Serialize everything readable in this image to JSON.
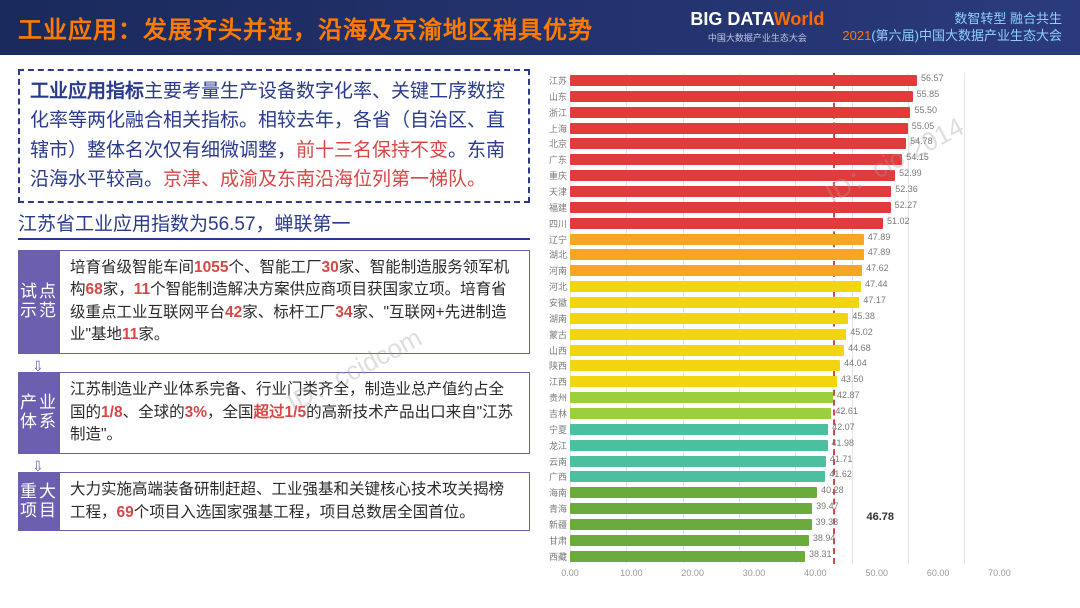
{
  "header": {
    "title": "工业应用：发展齐头并进，沿海及京渝地区稍具优势",
    "logo_big_pre": "BIG DATA",
    "logo_big_post": "World",
    "logo_sub": "中国大数据产业生态大会",
    "conf_line1": "数智转型  融合共生",
    "conf_line2_year": "2021",
    "conf_line2_rest": "(第六届)中国大数据产业生态大会"
  },
  "intro": {
    "bold": "工业应用指标",
    "t1": "主要考量生产设备数字化率、关键工序数控化率等两化融合相关指标。相较去年，各省（自治区、直辖市）整体名次仅有细微调整，",
    "red1": "前十三名保持不变",
    "t2": "。东南沿海水平较高。",
    "red2": "京津、成渝及东南沿海位列第一梯队。"
  },
  "subhead": "江苏省工业应用指数为56.57，蝉联第一",
  "sections": [
    {
      "tag": "试点示范",
      "html_parts": [
        "培育省级智能车间",
        "1055",
        "个、智能工厂",
        "30",
        "家、智能制造服务领军机构",
        "68",
        "家，",
        "11",
        "个智能制造解决方案供应商项目获国家立项。培育省级重点工业互联网平台",
        "42",
        "家、标杆工厂",
        "34",
        "家、\"互联网+先进制造业\"基地",
        "11",
        "家。"
      ]
    },
    {
      "tag": "产业体系",
      "html_parts": [
        "江苏制造业产业体系完备、行业门类齐全，制造业总产值约占全国的",
        "1/8",
        "、全球的",
        "3%",
        "，全国",
        "超过1/5",
        "的高新技术产品出口来自\"江苏制造\"。"
      ]
    },
    {
      "tag": "重大项目",
      "html_parts": [
        "大力实施高端装备研制赶超、工业强基和关键核心技术攻关揭榜工程，",
        "69",
        "个项目入选国家强基工程，项目总数居全国首位。"
      ]
    }
  ],
  "chart": {
    "type": "bar-horizontal",
    "x_max": 70,
    "x_ticks": [
      0,
      10,
      20,
      30,
      40,
      50,
      60,
      70
    ],
    "x_tick_labels": [
      "0.00",
      "10.00",
      "20.00",
      "30.00",
      "40.00",
      "50.00",
      "60.00",
      "70.00"
    ],
    "avg": 46.78,
    "avg_label": "46.78",
    "color_bands": {
      "red": "#e23b3b",
      "orange": "#f5a623",
      "yellow": "#f2d40f",
      "lime": "#9ccf3c",
      "teal": "#4bbfa0",
      "green": "#6aab3c"
    },
    "grid_color": "#e5e5e5",
    "text_color": "#7a7a7a",
    "items": [
      {
        "label": "江苏",
        "value": 56.57,
        "color": "red"
      },
      {
        "label": "山东",
        "value": 55.85,
        "color": "red"
      },
      {
        "label": "浙江",
        "value": 55.5,
        "color": "red"
      },
      {
        "label": "上海",
        "value": 55.05,
        "color": "red"
      },
      {
        "label": "北京",
        "value": 54.78,
        "color": "red"
      },
      {
        "label": "广东",
        "value": 54.15,
        "color": "red"
      },
      {
        "label": "重庆",
        "value": 52.99,
        "color": "red"
      },
      {
        "label": "天津",
        "value": 52.36,
        "color": "red"
      },
      {
        "label": "福建",
        "value": 52.27,
        "color": "red"
      },
      {
        "label": "四川",
        "value": 51.02,
        "color": "red"
      },
      {
        "label": "辽宁",
        "value": 47.89,
        "color": "orange"
      },
      {
        "label": "湖北",
        "value": 47.89,
        "color": "orange"
      },
      {
        "label": "河南",
        "value": 47.62,
        "color": "orange"
      },
      {
        "label": "河北",
        "value": 47.44,
        "color": "yellow"
      },
      {
        "label": "安徽",
        "value": 47.17,
        "color": "yellow"
      },
      {
        "label": "湖南",
        "value": 45.38,
        "color": "yellow"
      },
      {
        "label": "蒙古",
        "value": 45.02,
        "color": "yellow"
      },
      {
        "label": "山西",
        "value": 44.68,
        "color": "yellow"
      },
      {
        "label": "陕西",
        "value": 44.04,
        "color": "yellow"
      },
      {
        "label": "江西",
        "value": 43.5,
        "color": "yellow"
      },
      {
        "label": "贵州",
        "value": 42.87,
        "color": "lime"
      },
      {
        "label": "吉林",
        "value": 42.61,
        "color": "lime"
      },
      {
        "label": "宁夏",
        "value": 42.07,
        "color": "teal"
      },
      {
        "label": "龙江",
        "value": 41.98,
        "color": "teal"
      },
      {
        "label": "云南",
        "value": 41.71,
        "color": "teal"
      },
      {
        "label": "广西",
        "value": 41.62,
        "color": "teal"
      },
      {
        "label": "海南",
        "value": 40.28,
        "color": "green"
      },
      {
        "label": "青海",
        "value": 39.47,
        "color": "green"
      },
      {
        "label": "新疆",
        "value": 39.38,
        "color": "green"
      },
      {
        "label": "甘肃",
        "value": 38.94,
        "color": "green"
      },
      {
        "label": "西藏",
        "value": 38.31,
        "color": "green"
      }
    ]
  },
  "watermark1": "ID：ccidcom",
  "watermark2": "ID：cio-2014"
}
